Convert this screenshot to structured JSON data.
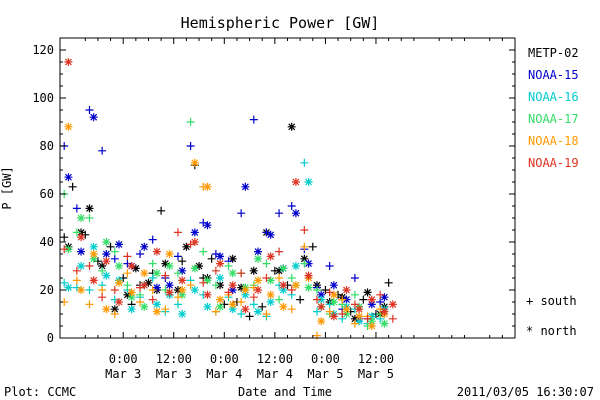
{
  "chart_data": {
    "type": "scatter",
    "title": "Hemispheric Power [GW]",
    "ylabel": "P [GW]",
    "xlabel": "Date and Time",
    "ylim": [
      0,
      125
    ],
    "yticks": [
      0,
      20,
      40,
      60,
      80,
      100,
      120
    ],
    "xlim_hours": [
      -15,
      93
    ],
    "xticks": [
      {
        "h": 0,
        "time": "0:00",
        "date": "Mar 3"
      },
      {
        "h": 12,
        "time": "12:00",
        "date": "Mar 3"
      },
      {
        "h": 24,
        "time": "0:00",
        "date": "Mar 4"
      },
      {
        "h": 36,
        "time": "12:00",
        "date": "Mar 4"
      },
      {
        "h": 48,
        "time": "0:00",
        "date": "Mar 5"
      },
      {
        "h": 60,
        "time": "12:00",
        "date": "Mar 5"
      }
    ],
    "legend_position": "right",
    "series": [
      {
        "name": "METP-02",
        "color": "#000000",
        "south": [
          [
            -14,
            42
          ],
          [
            -12,
            63
          ],
          [
            -9,
            43
          ],
          [
            -6,
            32
          ],
          [
            -3,
            38
          ],
          [
            0,
            25
          ],
          [
            2,
            14
          ],
          [
            4,
            22
          ],
          [
            7,
            27
          ],
          [
            9,
            53
          ],
          [
            11,
            18
          ],
          [
            14,
            32
          ],
          [
            17,
            72
          ],
          [
            19,
            25
          ],
          [
            21,
            33
          ],
          [
            24,
            14
          ],
          [
            27,
            15
          ],
          [
            30,
            9
          ],
          [
            33,
            13
          ],
          [
            36,
            28
          ],
          [
            39,
            22
          ],
          [
            42,
            16
          ],
          [
            45,
            38
          ],
          [
            48,
            20
          ],
          [
            51,
            18
          ],
          [
            54,
            11
          ],
          [
            57,
            16
          ],
          [
            60,
            10
          ],
          [
            63,
            23
          ]
        ],
        "north": [
          [
            -13,
            38
          ],
          [
            -10,
            44
          ],
          [
            -8,
            54
          ],
          [
            -5,
            30
          ],
          [
            -2,
            12
          ],
          [
            1,
            18
          ],
          [
            3,
            29
          ],
          [
            6,
            23
          ],
          [
            8,
            20
          ],
          [
            10,
            31
          ],
          [
            13,
            20
          ],
          [
            15,
            38
          ],
          [
            18,
            30
          ],
          [
            20,
            25
          ],
          [
            23,
            22
          ],
          [
            26,
            33
          ],
          [
            28,
            21
          ],
          [
            31,
            28
          ],
          [
            34,
            44
          ],
          [
            37,
            28
          ],
          [
            40,
            88
          ],
          [
            43,
            33
          ],
          [
            46,
            22
          ],
          [
            49,
            15
          ],
          [
            52,
            17
          ],
          [
            55,
            8
          ],
          [
            58,
            19
          ],
          [
            61,
            10
          ],
          [
            62,
            13
          ]
        ]
      },
      {
        "name": "NOAA-15",
        "color": "#0000cc",
        "south": [
          [
            -14,
            80
          ],
          [
            -11,
            54
          ],
          [
            -8,
            95
          ],
          [
            -5,
            78
          ],
          [
            -2,
            33
          ],
          [
            1,
            31
          ],
          [
            4,
            35
          ],
          [
            7,
            41
          ],
          [
            10,
            25
          ],
          [
            13,
            34
          ],
          [
            16,
            80
          ],
          [
            19,
            48
          ],
          [
            22,
            35
          ],
          [
            25,
            32
          ],
          [
            28,
            52
          ],
          [
            31,
            91
          ],
          [
            34,
            44
          ],
          [
            37,
            52
          ],
          [
            40,
            55
          ],
          [
            43,
            37
          ],
          [
            46,
            21
          ],
          [
            49,
            30
          ],
          [
            52,
            12
          ],
          [
            55,
            25
          ],
          [
            58,
            8
          ],
          [
            61,
            15
          ]
        ],
        "north": [
          [
            -13,
            67
          ],
          [
            -10,
            36
          ],
          [
            -7,
            92
          ],
          [
            -4,
            35
          ],
          [
            -1,
            39
          ],
          [
            2,
            30
          ],
          [
            5,
            38
          ],
          [
            8,
            21
          ],
          [
            11,
            22
          ],
          [
            14,
            28
          ],
          [
            17,
            44
          ],
          [
            20,
            47
          ],
          [
            23,
            34
          ],
          [
            26,
            20
          ],
          [
            29,
            63
          ],
          [
            32,
            36
          ],
          [
            35,
            43
          ],
          [
            38,
            29
          ],
          [
            41,
            52
          ],
          [
            44,
            31
          ],
          [
            47,
            18
          ],
          [
            50,
            22
          ],
          [
            53,
            16
          ],
          [
            56,
            8
          ],
          [
            59,
            14
          ],
          [
            62,
            17
          ]
        ]
      },
      {
        "name": "NOAA-16",
        "color": "#00cccc",
        "south": [
          [
            -14,
            23
          ],
          [
            -11,
            21
          ],
          [
            -8,
            20
          ],
          [
            -5,
            22
          ],
          [
            -2,
            16
          ],
          [
            1,
            20
          ],
          [
            4,
            17
          ],
          [
            7,
            25
          ],
          [
            10,
            11
          ],
          [
            13,
            14
          ],
          [
            16,
            24
          ],
          [
            19,
            18
          ],
          [
            22,
            11
          ],
          [
            25,
            17
          ],
          [
            28,
            10
          ],
          [
            31,
            14
          ],
          [
            34,
            9
          ],
          [
            37,
            22
          ],
          [
            40,
            18
          ],
          [
            43,
            73
          ],
          [
            46,
            11
          ],
          [
            49,
            14
          ],
          [
            52,
            8
          ],
          [
            55,
            12
          ],
          [
            58,
            6
          ],
          [
            61,
            8
          ]
        ],
        "north": [
          [
            -13,
            21
          ],
          [
            -10,
            30
          ],
          [
            -7,
            38
          ],
          [
            -4,
            26
          ],
          [
            -1,
            24
          ],
          [
            2,
            12
          ],
          [
            5,
            22
          ],
          [
            8,
            14
          ],
          [
            11,
            18
          ],
          [
            14,
            10
          ],
          [
            17,
            20
          ],
          [
            20,
            13
          ],
          [
            23,
            25
          ],
          [
            26,
            12
          ],
          [
            29,
            18
          ],
          [
            32,
            11
          ],
          [
            35,
            15
          ],
          [
            38,
            20
          ],
          [
            41,
            30
          ],
          [
            44,
            65
          ],
          [
            47,
            16
          ],
          [
            50,
            10
          ],
          [
            53,
            13
          ],
          [
            56,
            7
          ],
          [
            59,
            9
          ],
          [
            62,
            12
          ]
        ]
      },
      {
        "name": "NOAA-17",
        "color": "#33dd66",
        "south": [
          [
            -14,
            60
          ],
          [
            -11,
            44
          ],
          [
            -8,
            50
          ],
          [
            -5,
            28
          ],
          [
            -2,
            36
          ],
          [
            1,
            22
          ],
          [
            4,
            18
          ],
          [
            7,
            31
          ],
          [
            10,
            20
          ],
          [
            13,
            27
          ],
          [
            16,
            90
          ],
          [
            19,
            36
          ],
          [
            22,
            22
          ],
          [
            25,
            30
          ],
          [
            28,
            27
          ],
          [
            31,
            22
          ],
          [
            34,
            31
          ],
          [
            37,
            16
          ],
          [
            40,
            25
          ],
          [
            43,
            31
          ],
          [
            46,
            20
          ],
          [
            49,
            10
          ],
          [
            52,
            14
          ],
          [
            55,
            18
          ],
          [
            58,
            5
          ],
          [
            61,
            10
          ]
        ],
        "north": [
          [
            -13,
            37
          ],
          [
            -10,
            50
          ],
          [
            -7,
            33
          ],
          [
            -4,
            40
          ],
          [
            -1,
            30
          ],
          [
            2,
            17
          ],
          [
            5,
            13
          ],
          [
            8,
            27
          ],
          [
            11,
            30
          ],
          [
            14,
            18
          ],
          [
            17,
            29
          ],
          [
            20,
            24
          ],
          [
            23,
            13
          ],
          [
            26,
            27
          ],
          [
            29,
            21
          ],
          [
            32,
            33
          ],
          [
            35,
            24
          ],
          [
            38,
            29
          ],
          [
            41,
            22
          ],
          [
            44,
            21
          ],
          [
            47,
            13
          ],
          [
            50,
            15
          ],
          [
            53,
            10
          ],
          [
            56,
            13
          ],
          [
            59,
            7
          ],
          [
            62,
            6
          ]
        ]
      },
      {
        "name": "NOAA-18",
        "color": "#ff9900",
        "south": [
          [
            -14,
            15
          ],
          [
            -11,
            24
          ],
          [
            -8,
            14
          ],
          [
            -5,
            20
          ],
          [
            -2,
            10
          ],
          [
            1,
            27
          ],
          [
            4,
            15
          ],
          [
            7,
            20
          ],
          [
            10,
            12
          ],
          [
            13,
            17
          ],
          [
            16,
            22
          ],
          [
            19,
            63
          ],
          [
            22,
            11
          ],
          [
            25,
            18
          ],
          [
            28,
            15
          ],
          [
            31,
            21
          ],
          [
            34,
            10
          ],
          [
            37,
            25
          ],
          [
            40,
            12
          ],
          [
            43,
            38
          ],
          [
            46,
            1
          ],
          [
            49,
            11
          ],
          [
            52,
            16
          ],
          [
            55,
            6
          ],
          [
            58,
            9
          ],
          [
            61,
            12
          ]
        ],
        "north": [
          [
            -13,
            88
          ],
          [
            -10,
            20
          ],
          [
            -7,
            35
          ],
          [
            -4,
            12
          ],
          [
            -1,
            23
          ],
          [
            2,
            19
          ],
          [
            5,
            27
          ],
          [
            8,
            11
          ],
          [
            11,
            35
          ],
          [
            14,
            20
          ],
          [
            17,
            73
          ],
          [
            20,
            63
          ],
          [
            23,
            16
          ],
          [
            26,
            14
          ],
          [
            29,
            20
          ],
          [
            32,
            24
          ],
          [
            35,
            18
          ],
          [
            38,
            13
          ],
          [
            41,
            22
          ],
          [
            44,
            25
          ],
          [
            47,
            7
          ],
          [
            50,
            18
          ],
          [
            53,
            12
          ],
          [
            56,
            9
          ],
          [
            59,
            5
          ],
          [
            62,
            10
          ]
        ]
      },
      {
        "name": "NOAA-19",
        "color": "#dd3322",
        "south": [
          [
            -14,
            37
          ],
          [
            -11,
            28
          ],
          [
            -8,
            30
          ],
          [
            -5,
            17
          ],
          [
            -2,
            20
          ],
          [
            1,
            34
          ],
          [
            4,
            21
          ],
          [
            7,
            16
          ],
          [
            10,
            26
          ],
          [
            13,
            44
          ],
          [
            16,
            39
          ],
          [
            19,
            23
          ],
          [
            22,
            28
          ],
          [
            25,
            19
          ],
          [
            28,
            27
          ],
          [
            31,
            17
          ],
          [
            34,
            25
          ],
          [
            37,
            36
          ],
          [
            40,
            20
          ],
          [
            43,
            45
          ],
          [
            46,
            16
          ],
          [
            49,
            19
          ],
          [
            52,
            10
          ],
          [
            55,
            14
          ],
          [
            58,
            8
          ],
          [
            61,
            18
          ],
          [
            64,
            8
          ]
        ],
        "north": [
          [
            -13,
            115
          ],
          [
            -10,
            42
          ],
          [
            -7,
            24
          ],
          [
            -4,
            32
          ],
          [
            -1,
            15
          ],
          [
            2,
            30
          ],
          [
            5,
            22
          ],
          [
            8,
            36
          ],
          [
            11,
            19
          ],
          [
            14,
            24
          ],
          [
            17,
            40
          ],
          [
            20,
            18
          ],
          [
            23,
            31
          ],
          [
            26,
            22
          ],
          [
            29,
            12
          ],
          [
            32,
            20
          ],
          [
            35,
            34
          ],
          [
            38,
            22
          ],
          [
            41,
            65
          ],
          [
            44,
            26
          ],
          [
            47,
            13
          ],
          [
            50,
            9
          ],
          [
            53,
            20
          ],
          [
            56,
            12
          ],
          [
            59,
            16
          ],
          [
            62,
            11
          ],
          [
            64,
            14
          ]
        ]
      }
    ],
    "marker_legend": [
      {
        "symbol": "+",
        "label": "south"
      },
      {
        "symbol": "*",
        "label": "north"
      }
    ]
  },
  "footer": {
    "plot_credit": "Plot: CCMC",
    "timestamp": "2011/03/05 16:30:07"
  }
}
